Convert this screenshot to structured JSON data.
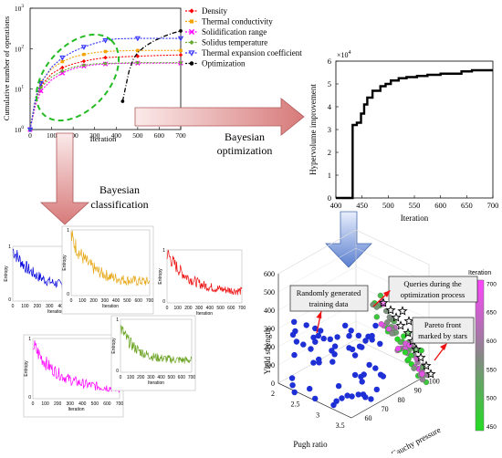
{
  "colors": {
    "density": "#ff0000",
    "thermal_conductivity": "#f5a300",
    "solidification_range": "#ff00ff",
    "solidus_temperature": "#66aa33",
    "thermal_expansion": "#3333ff",
    "optimization": "#000000",
    "highlight_ellipse": "#22bb22",
    "arrow_fill": "#e8a0a0",
    "arrow_blue": "#6a8fd8",
    "entropy_blue": "#0000dd",
    "entropy_orange": "#e6a817",
    "entropy_red": "#ee1111",
    "entropy_green": "#6aa321",
    "entropy_magenta": "#ff00ff",
    "scatter_random": "#1e2fd6",
    "colorbar_high": "#ff44ff",
    "colorbar_low": "#22dd22"
  },
  "flow": {
    "bayesian_optimization": [
      "Bayesian",
      "optimization"
    ],
    "bayesian_classification": [
      "Bayesian",
      "classification"
    ]
  },
  "chart_data": [
    {
      "type": "line",
      "xlabel": "Iteration",
      "ylabel": "Cumulative number of operations",
      "ylog": true,
      "xlim": [
        0,
        700
      ],
      "ylim_exp": [
        0,
        3
      ],
      "x_ticks": [
        "0",
        "100",
        "200",
        "300",
        "400",
        "500",
        "600",
        "700"
      ],
      "y_ticks": [
        {
          "base": "10",
          "exp": "0"
        },
        {
          "base": "10",
          "exp": "1"
        },
        {
          "base": "10",
          "exp": "2"
        },
        {
          "base": "10",
          "exp": "3"
        }
      ],
      "series": [
        {
          "name": "Density",
          "marker": "diamond",
          "color_key": "density",
          "x": [
            0,
            25,
            50,
            100,
            150,
            200,
            250,
            300,
            350,
            400,
            500,
            600,
            700
          ],
          "y": [
            1,
            5,
            12,
            24,
            34,
            42,
            49,
            55,
            60,
            62,
            65,
            68,
            70
          ]
        },
        {
          "name": "Thermal conductivity",
          "marker": "square",
          "color_key": "thermal_conductivity",
          "x": [
            0,
            25,
            50,
            100,
            150,
            200,
            250,
            300,
            350,
            400,
            500,
            600,
            700
          ],
          "y": [
            1,
            6,
            15,
            32,
            48,
            62,
            72,
            80,
            85,
            88,
            90,
            90,
            90
          ]
        },
        {
          "name": "Solidification range",
          "marker": "x",
          "color_key": "solidification_range",
          "x": [
            0,
            25,
            50,
            100,
            150,
            200,
            250,
            300,
            350,
            400,
            500,
            600,
            700
          ],
          "y": [
            1,
            4,
            9,
            17,
            25,
            32,
            37,
            40,
            42,
            43,
            44,
            44,
            44
          ]
        },
        {
          "name": "Solidus temperature",
          "marker": "diamond",
          "color_key": "solidus_temperature",
          "x": [
            0,
            25,
            50,
            100,
            150,
            200,
            250,
            300,
            350,
            400,
            500,
            600,
            700
          ],
          "y": [
            1,
            5,
            11,
            20,
            28,
            35,
            39,
            42,
            43,
            44,
            45,
            45,
            45
          ]
        },
        {
          "name": "Thermal expansion coefficient",
          "marker": "triangle-down",
          "color_key": "thermal_expansion",
          "x": [
            0,
            25,
            50,
            100,
            150,
            200,
            250,
            300,
            350,
            400,
            500,
            600,
            700
          ],
          "y": [
            1,
            6,
            14,
            35,
            60,
            85,
            110,
            135,
            160,
            175,
            180,
            180,
            180
          ]
        },
        {
          "name": "Optimization",
          "marker": "circle",
          "color_key": "optimization",
          "x": [
            430,
            445,
            460,
            480,
            500,
            530,
            570,
            620,
            660,
            700
          ],
          "y": [
            5,
            12,
            28,
            55,
            80,
            110,
            150,
            200,
            240,
            275
          ]
        }
      ]
    },
    {
      "type": "line",
      "xlabel": "Iteration",
      "ylabel": "Hypervolume improvement",
      "exponent_label": {
        "base": "×10",
        "exp": "4"
      },
      "xlim": [
        400,
        700
      ],
      "ylim": [
        0,
        6
      ],
      "x_ticks": [
        "400",
        "450",
        "500",
        "550",
        "600",
        "650",
        "700"
      ],
      "y_ticks": [
        "0",
        "1",
        "2",
        "3",
        "4",
        "5",
        "6"
      ],
      "step_x": [
        400,
        432,
        432,
        440,
        440,
        448,
        448,
        454,
        454,
        460,
        460,
        470,
        470,
        485,
        485,
        495,
        495,
        505,
        505,
        520,
        520,
        535,
        535,
        555,
        555,
        575,
        575,
        600,
        600,
        640,
        640,
        660,
        660,
        700
      ],
      "step_y": [
        0,
        0,
        3.2,
        3.2,
        3.3,
        3.3,
        3.7,
        3.7,
        4.1,
        4.1,
        4.4,
        4.4,
        4.7,
        4.7,
        4.9,
        4.9,
        5.0,
        5.0,
        5.15,
        5.15,
        5.25,
        5.25,
        5.3,
        5.3,
        5.35,
        5.35,
        5.4,
        5.4,
        5.45,
        5.45,
        5.55,
        5.55,
        5.6,
        5.6
      ]
    },
    {
      "type": "line",
      "panels": [
        {
          "id": "blue",
          "color_key": "entropy_blue",
          "ylabel": "Entropy",
          "xlabel": "Iteration",
          "x_ticks": [
            "0",
            "100",
            "200",
            "300",
            "400",
            "500",
            "600",
            "700"
          ],
          "y_ticks": [
            "1",
            "0"
          ],
          "start": 0.95,
          "end": 0.22,
          "decay": 180
        },
        {
          "id": "orange",
          "color_key": "entropy_orange",
          "ylabel": "Entropy",
          "xlabel": "Iteration",
          "x_ticks": [
            "0",
            "100",
            "200",
            "300",
            "400",
            "500",
            "600",
            "700"
          ],
          "y_ticks": [
            "1",
            "0"
          ],
          "start": 0.9,
          "end": 0.2,
          "decay": 170
        },
        {
          "id": "red",
          "color_key": "entropy_red",
          "ylabel": "Entropy",
          "xlabel": "Iteration",
          "x_ticks": [
            "0",
            "100",
            "200",
            "300",
            "400",
            "500",
            "600",
            "700"
          ],
          "y_ticks": [
            "1",
            "0"
          ],
          "start": 0.95,
          "end": 0.2,
          "decay": 200
        },
        {
          "id": "magenta",
          "color_key": "entropy_magenta",
          "ylabel": "Entropy",
          "xlabel": "Iteration",
          "x_ticks": [
            "0",
            "100",
            "200",
            "300",
            "400",
            "500",
            "600",
            "700"
          ],
          "y_ticks": [
            "1",
            "0"
          ],
          "start": 0.9,
          "end": 0.15,
          "decay": 200
        },
        {
          "id": "green",
          "color_key": "entropy_green",
          "ylabel": "Entropy",
          "xlabel": "Iteration",
          "x_ticks": [
            "0",
            "100",
            "200",
            "300",
            "400",
            "500",
            "600",
            "700"
          ],
          "y_ticks": [
            "1",
            "0"
          ],
          "start": 0.85,
          "end": 0.22,
          "decay": 150
        }
      ]
    },
    {
      "type": "scatter",
      "zlabel": "Yield strength",
      "xlabel": "Pugh ratio",
      "ylabel": "Cauchy pressure",
      "colorbar_label": "Iteration",
      "colorbar_ticks": [
        "450",
        "500",
        "550",
        "600",
        "650",
        "700"
      ],
      "z_ticks": [
        "0",
        "100",
        "200",
        "300",
        "400",
        "500",
        "600"
      ],
      "x_ticks": [
        "2",
        "2.5",
        "3",
        "3.5"
      ],
      "y_ticks": [
        "60",
        "70",
        "80",
        "90",
        "100"
      ],
      "annotations": [
        {
          "id": "random",
          "lines": [
            "Randomly generated",
            "training data"
          ]
        },
        {
          "id": "queries",
          "lines": [
            "Queries during the",
            "optimization process"
          ]
        },
        {
          "id": "pareto",
          "lines": [
            "Pareto front",
            "marked by stars"
          ]
        }
      ]
    }
  ]
}
